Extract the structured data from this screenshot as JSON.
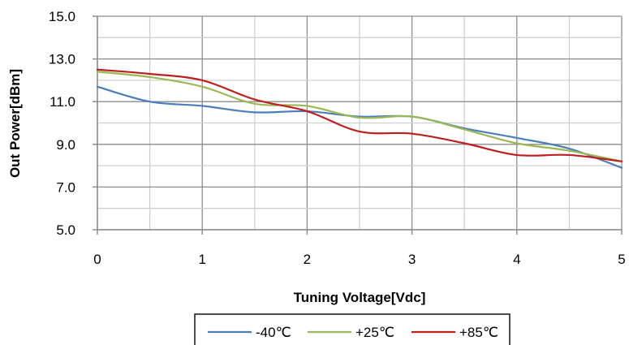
{
  "chart_data": {
    "type": "line",
    "title": "",
    "xlabel": "Tuning Voltage[Vdc]",
    "ylabel": "Out Power[dBm]",
    "xlim": [
      0,
      5
    ],
    "ylim": [
      5.0,
      15.0
    ],
    "x_ticks": [
      "0",
      "1",
      "2",
      "3",
      "4",
      "5"
    ],
    "y_ticks": [
      "5.0",
      "7.0",
      "9.0",
      "11.0",
      "13.0",
      "15.0"
    ],
    "grid": true,
    "legend_position": "bottom",
    "x": [
      0,
      0.5,
      1,
      1.5,
      2,
      2.5,
      3,
      3.5,
      4,
      4.5,
      5
    ],
    "series": [
      {
        "name": "-40℃",
        "color": "#4a7ebb",
        "values": [
          11.7,
          11.0,
          10.8,
          10.5,
          10.55,
          10.3,
          10.3,
          9.75,
          9.3,
          8.8,
          7.9
        ]
      },
      {
        "name": "+25℃",
        "color": "#98b954",
        "values": [
          12.4,
          12.15,
          11.7,
          10.9,
          10.8,
          10.25,
          10.3,
          9.7,
          9.05,
          8.7,
          8.2
        ]
      },
      {
        "name": "+85℃",
        "color": "#be1e1e",
        "values": [
          12.5,
          12.3,
          12.0,
          11.1,
          10.55,
          9.6,
          9.5,
          9.05,
          8.5,
          8.5,
          8.2
        ]
      }
    ]
  }
}
